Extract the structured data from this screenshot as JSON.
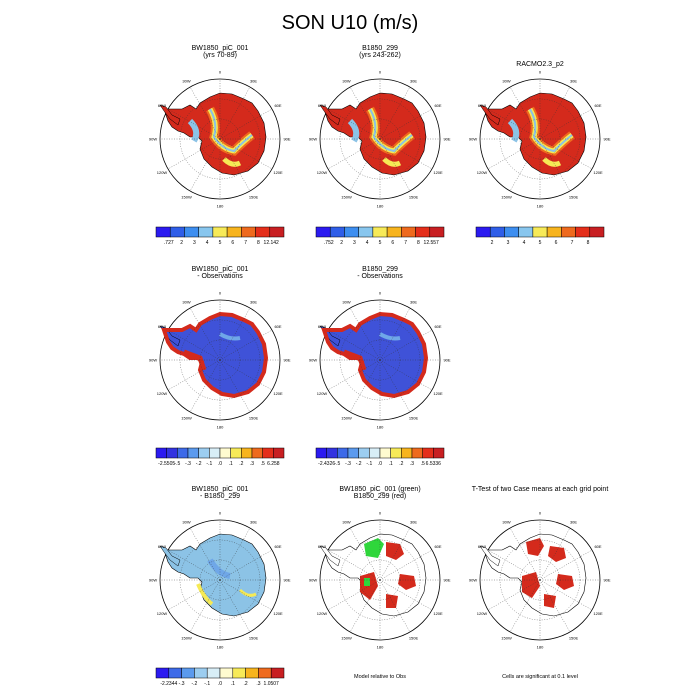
{
  "page_title": "SON U10 (m/s)",
  "lon_labels": [
    "0",
    "30E",
    "60E",
    "90E",
    "120E",
    "150E",
    "180",
    "150W",
    "120W",
    "90W",
    "60W",
    "30W"
  ],
  "colors": {
    "red": "#d42a1c",
    "orange": "#ee6a1e",
    "yellow": "#f6ea55",
    "lightblue": "#8cc3e6",
    "blue": "#3f52d8",
    "green": "#2fd63b",
    "grid": "#333333"
  },
  "rows": [
    {
      "panels": [
        {
          "title": [
            "BW1850_piC_001",
            "(yrs 70-89)"
          ],
          "style": "abs",
          "colorbar": {
            "colors": [
              "#2b1af0",
              "#2f5ee8",
              "#3d8ef0",
              "#88c6ee",
              "#f7ea58",
              "#f7b41e",
              "#ee6a1e",
              "#e42e1a",
              "#c81f22"
            ],
            "labels": [
              ".727",
              "2",
              "3",
              "4",
              "5",
              "6",
              "7",
              "8",
              "12.142"
            ]
          }
        },
        {
          "title": [
            "B1850_299",
            "(yrs 243-262)"
          ],
          "style": "abs",
          "colorbar": {
            "colors": [
              "#2b1af0",
              "#2f5ee8",
              "#3d8ef0",
              "#88c6ee",
              "#f7ea58",
              "#f7b41e",
              "#ee6a1e",
              "#e42e1a",
              "#c81f22"
            ],
            "labels": [
              ".752",
              "2",
              "3",
              "4",
              "5",
              "6",
              "7",
              "8",
              "12.557"
            ]
          }
        },
        {
          "title": [
            "RACMO2.3_p2",
            ""
          ],
          "style": "abs",
          "colorbar": {
            "colors": [
              "#2b1af0",
              "#2f5ee8",
              "#3d8ef0",
              "#88c6ee",
              "#f7ea58",
              "#f7b41e",
              "#ee6a1e",
              "#e42e1a",
              "#c81f22"
            ],
            "labels": [
              "2",
              "3",
              "4",
              "5",
              "6",
              "7",
              "8"
            ]
          }
        }
      ]
    },
    {
      "panels": [
        {
          "title": [
            "BW1850_piC_001",
            "- Observations"
          ],
          "style": "diffobs",
          "colorbar": {
            "colors": [
              "#2b1af0",
              "#3233e0",
              "#3d6ae8",
              "#5b9aee",
              "#9ccdf0",
              "#d8eef7",
              "#fffbd0",
              "#f7ea58",
              "#f7b41e",
              "#ee6a1e",
              "#e42e1a",
              "#c81f22"
            ],
            "labels": [
              "-2.5505",
              "-.5",
              "-.3",
              "-.2",
              "-.1",
              ".0",
              ".1",
              ".2",
              ".3",
              ".5",
              "6.258"
            ]
          }
        },
        {
          "title": [
            "B1850_299",
            "- Observations"
          ],
          "style": "diffobs",
          "colorbar": {
            "colors": [
              "#2b1af0",
              "#3233e0",
              "#3d6ae8",
              "#5b9aee",
              "#9ccdf0",
              "#d8eef7",
              "#fffbd0",
              "#f7ea58",
              "#f7b41e",
              "#ee6a1e",
              "#e42e1a",
              "#c81f22"
            ],
            "labels": [
              "-2.4326",
              "-.5",
              "-.3",
              "-.2",
              "-.1",
              ".0",
              ".1",
              ".2",
              ".3",
              ".5",
              "6.5336"
            ]
          }
        }
      ]
    },
    {
      "panels": [
        {
          "title": [
            "BW1850_piC_001",
            "- B1850_299"
          ],
          "style": "diffmod",
          "colorbar": {
            "colors": [
              "#2b1af0",
              "#3d6ae8",
              "#5b9aee",
              "#9ccdf0",
              "#d8eef7",
              "#fffbd0",
              "#f7ea58",
              "#f7b41e",
              "#ee6a1e",
              "#c81f22"
            ],
            "labels": [
              "-2.2344",
              "-.3",
              "-.2",
              "-.1",
              ".0",
              ".1",
              ".2",
              ".3",
              "1.0507"
            ]
          }
        },
        {
          "title": [
            "BW1850_piC_001 (green)",
            "B1850_299 (red)"
          ],
          "style": "sig2",
          "footnote": "Model relative to Obs"
        },
        {
          "title": [
            "T-Test of two Case means at each grid point",
            ""
          ],
          "style": "sig1",
          "footnote": "Cells are significant at 0.1 level"
        }
      ]
    }
  ]
}
